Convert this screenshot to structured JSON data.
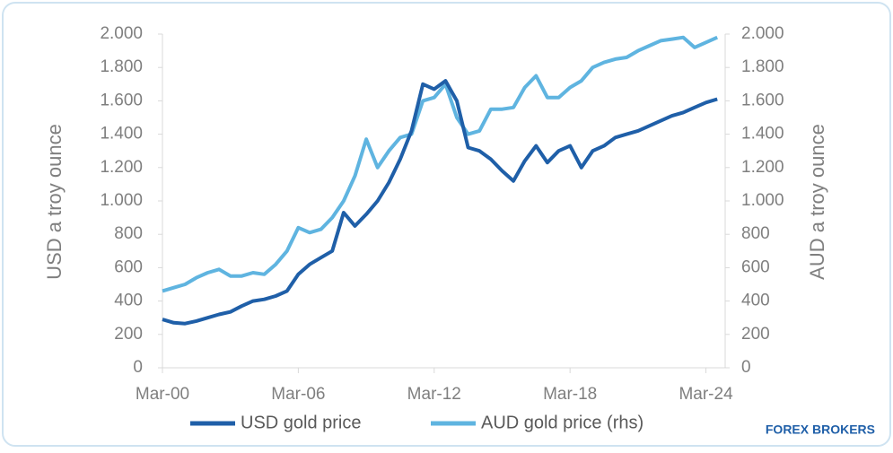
{
  "chart_data": {
    "type": "line",
    "categories": [
      "Mar-00",
      null,
      null,
      null,
      null,
      null,
      null,
      null,
      null,
      null,
      null,
      null,
      "Mar-06",
      null,
      null,
      null,
      null,
      null,
      null,
      null,
      null,
      null,
      null,
      null,
      "Mar-12",
      null,
      null,
      null,
      null,
      null,
      null,
      null,
      null,
      null,
      null,
      null,
      "Mar-18",
      null,
      null,
      null,
      null,
      null,
      null,
      null,
      null,
      null,
      null,
      null,
      "Mar-24",
      null
    ],
    "series": [
      {
        "name": "USD gold price",
        "color": "#1f5fa8",
        "axis": "y",
        "values": [
          290,
          270,
          265,
          280,
          300,
          320,
          335,
          370,
          400,
          410,
          430,
          460,
          560,
          620,
          660,
          700,
          930,
          850,
          920,
          1000,
          1110,
          1250,
          1420,
          1700,
          1670,
          1720,
          1600,
          1320,
          1300,
          1250,
          1180,
          1120,
          1240,
          1330,
          1230,
          1300,
          1330,
          1200,
          1300,
          1330,
          1380,
          1400,
          1420,
          1450,
          1480,
          1510,
          1530,
          1560,
          1590,
          1610
        ]
      },
      {
        "name": "AUD gold price (rhs)",
        "color": "#5fb4e0",
        "axis": "y2",
        "values": [
          460,
          480,
          500,
          540,
          570,
          590,
          550,
          550,
          570,
          560,
          620,
          700,
          840,
          810,
          830,
          900,
          1000,
          1150,
          1370,
          1200,
          1300,
          1380,
          1400,
          1600,
          1620,
          1700,
          1500,
          1400,
          1420,
          1550,
          1550,
          1560,
          1680,
          1750,
          1620,
          1620,
          1680,
          1720,
          1800,
          1830,
          1850,
          1860,
          1900,
          1930,
          1960,
          1970,
          1980,
          1920,
          1950,
          1980
        ]
      }
    ],
    "ylabel": "USD  a troy ounce",
    "y2label": "AUD a troy ounce",
    "ylim": [
      0,
      2000
    ],
    "yticks": [
      0,
      200,
      400,
      600,
      800,
      {
        "value": 1000,
        "label": "1.000"
      },
      {
        "value": 1200,
        "label": "1.200"
      },
      {
        "value": 1400,
        "label": "1.400"
      },
      {
        "value": 1600,
        "label": "1.600"
      },
      {
        "value": 1800,
        "label": "1.800"
      },
      {
        "value": 2000,
        "label": "2.000"
      }
    ],
    "y2lim": [
      0,
      2000
    ],
    "y2ticks": [
      0,
      200,
      400,
      600,
      800,
      {
        "value": 1000,
        "label": "1.000"
      },
      {
        "value": 1200,
        "label": "1.200"
      },
      {
        "value": 1400,
        "label": "1.400"
      },
      {
        "value": 1600,
        "label": "1.600"
      },
      {
        "value": 1800,
        "label": "1.800"
      },
      {
        "value": 2000,
        "label": "2.000"
      }
    ],
    "legend": "bottom",
    "brand": "FOREX BROKERS"
  }
}
